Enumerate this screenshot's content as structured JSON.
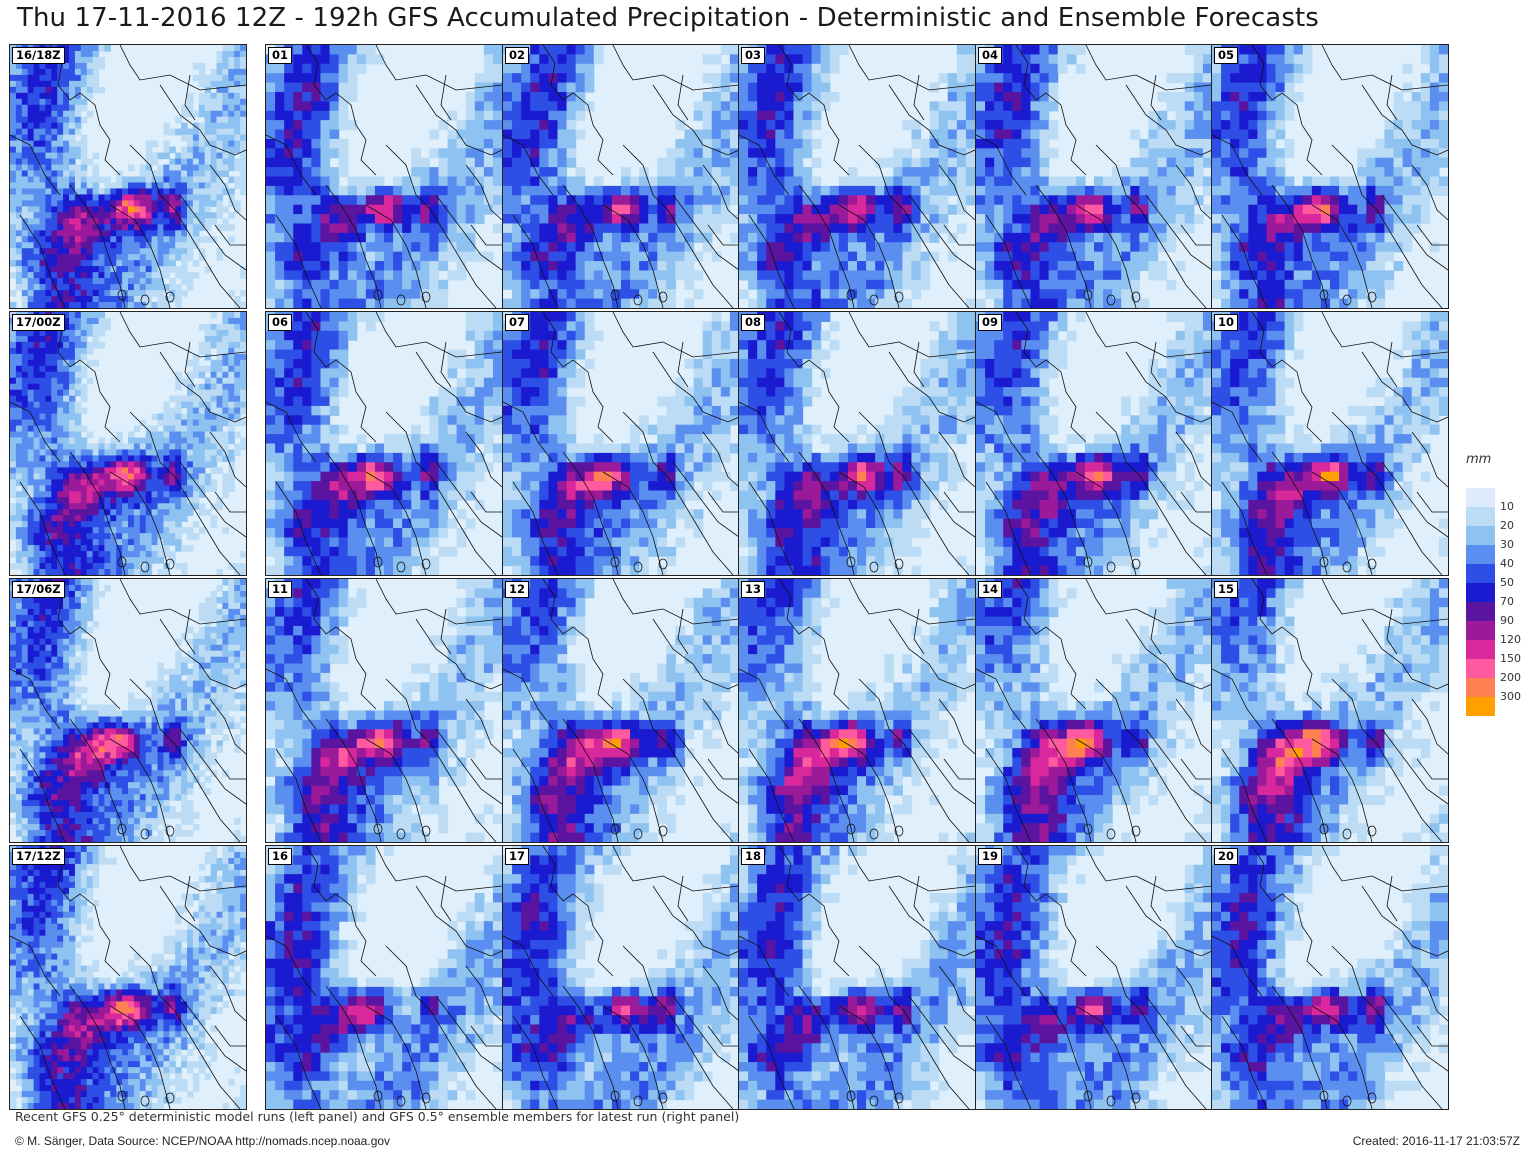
{
  "title": "Thu 17-11-2016 12Z - 192h GFS Accumulated Precipitation - Deterministic and Ensemble Forecasts",
  "deterministic_panels": [
    "16/18Z",
    "17/00Z",
    "17/06Z",
    "17/12Z"
  ],
  "ensemble_panels": [
    "01",
    "02",
    "03",
    "04",
    "05",
    "06",
    "07",
    "08",
    "09",
    "10",
    "11",
    "12",
    "13",
    "14",
    "15",
    "16",
    "17",
    "18",
    "19",
    "20"
  ],
  "legend": {
    "unit": "mm",
    "levels": [
      "10",
      "20",
      "30",
      "40",
      "50",
      "70",
      "90",
      "120",
      "150",
      "200",
      "300"
    ],
    "colors": [
      "#dcecfa",
      "#bcdcf6",
      "#8ec2f0",
      "#5a8ff0",
      "#2e4fe6",
      "#1a1ad0",
      "#5a14a0",
      "#9a1a9a",
      "#d8289c",
      "#ff5aa0",
      "#ff8050",
      "#ffa000"
    ]
  },
  "footer": {
    "description": "Recent GFS 0.25° deterministic model runs (left panel) and GFS 0.5° ensemble members for latest run (right panel)",
    "credit": "© M. Sänger, Data Source: NCEP/NOAA http://nomads.ncep.noaa.gov",
    "created": "Created: 2016-11-17 21:03:57Z"
  }
}
